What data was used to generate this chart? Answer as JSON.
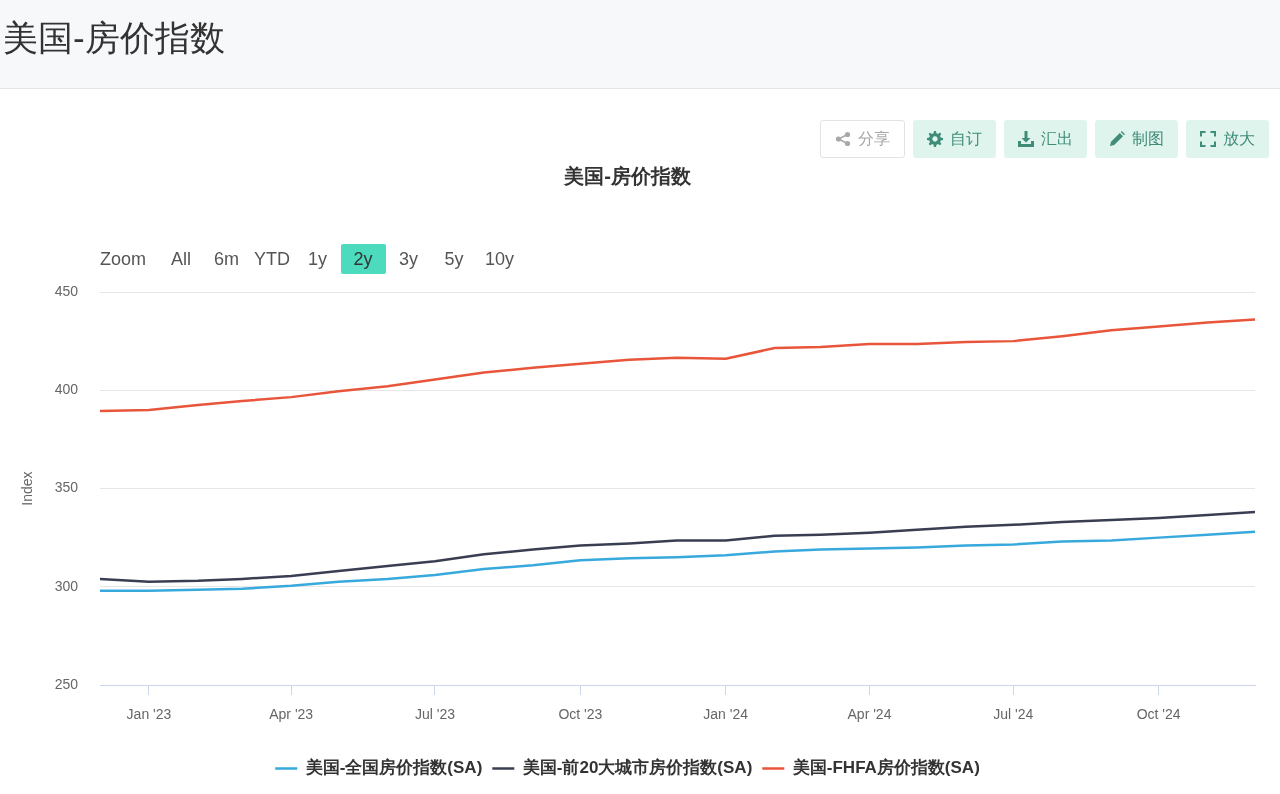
{
  "chart_data": {
    "type": "line",
    "title": "美国-房价指数",
    "ylabel": "Index",
    "x": [
      "2022-12",
      "2023-01",
      "2023-02",
      "2023-03",
      "2023-04",
      "2023-05",
      "2023-06",
      "2023-07",
      "2023-08",
      "2023-09",
      "2023-10",
      "2023-11",
      "2023-12",
      "2024-01",
      "2024-02",
      "2024-03",
      "2024-04",
      "2024-05",
      "2024-06",
      "2024-07",
      "2024-08",
      "2024-09",
      "2024-10",
      "2024-11",
      "2024-12"
    ],
    "xlim": [
      "2022-12",
      "2024-12"
    ],
    "xticks": [
      {
        "value": "2023-01",
        "label": "Jan '23"
      },
      {
        "value": "2023-04",
        "label": "Apr '23"
      },
      {
        "value": "2023-07",
        "label": "Jul '23"
      },
      {
        "value": "2023-10",
        "label": "Oct '23"
      },
      {
        "value": "2024-01",
        "label": "Jan '24"
      },
      {
        "value": "2024-04",
        "label": "Apr '24"
      },
      {
        "value": "2024-07",
        "label": "Jul '24"
      },
      {
        "value": "2024-10",
        "label": "Oct '24"
      }
    ],
    "ylim": [
      250,
      450
    ],
    "yticks": [
      250,
      300,
      350,
      400,
      450
    ],
    "grid": "y",
    "legend": "bottom",
    "marker": "none",
    "line_style": "solid",
    "series": [
      {
        "name": "美国-全国房价指数(SA)",
        "color": "#38a9dd",
        "values": [
          298,
          298,
          298.5,
          299,
          300.5,
          302.5,
          304,
          306,
          309,
          311,
          313.5,
          314.5,
          315,
          316,
          318,
          319,
          319.5,
          320,
          321,
          321.5,
          323,
          323.5,
          325,
          326.5,
          328
        ]
      },
      {
        "name": "美国-前20大城市房价指数(SA)",
        "color": "#3a3e52",
        "values": [
          304,
          302.5,
          303,
          304,
          305.5,
          308,
          310.5,
          313,
          316.5,
          319,
          321,
          322,
          323.5,
          323.5,
          326,
          326.5,
          327.5,
          329,
          330.5,
          331.5,
          333,
          334,
          335,
          336.5,
          338
        ]
      },
      {
        "name": "美国-FHFA房价指数(SA)",
        "color": "#e8553b",
        "values": [
          389.5,
          390,
          392.5,
          394.5,
          396.5,
          399.5,
          402,
          405.5,
          409,
          411.5,
          413.5,
          415.5,
          416.5,
          416,
          421.5,
          422,
          423.5,
          423.5,
          424.5,
          425,
          427.5,
          430.5,
          432.5,
          434.5,
          436
        ]
      }
    ],
    "annotations": [
      "分享",
      "自订",
      "汇出",
      "制图",
      "放大",
      "Zoom",
      "All",
      "6m",
      "YTD",
      "1y",
      "2y",
      "3y",
      "5y",
      "10y"
    ]
  }
}
